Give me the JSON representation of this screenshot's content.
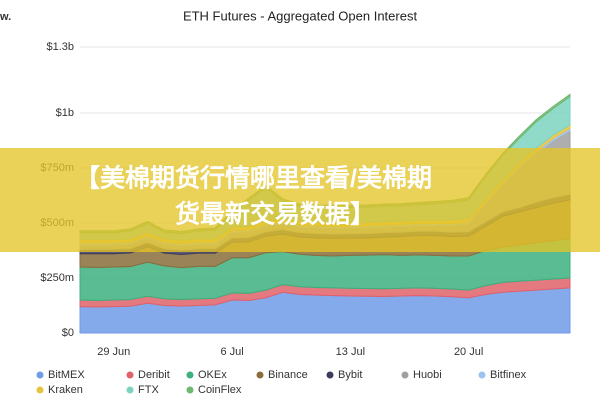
{
  "logo": "w.",
  "banner": [
    "【美棉期货行情哪里查看/美棉期",
    "货最新交易数据】"
  ],
  "chart_data": {
    "type": "stacked-area",
    "title": "ETH Futures - Aggregated Open Interest",
    "categories": [
      null,
      null,
      "29 Jun",
      null,
      null,
      null,
      null,
      null,
      null,
      "6 Jul",
      null,
      null,
      null,
      null,
      null,
      null,
      "13 Jul",
      null,
      null,
      null,
      null,
      null,
      null,
      "20 Jul",
      null,
      null,
      null,
      null,
      null,
      null
    ],
    "ylim": [
      0,
      1300000000
    ],
    "yticks": [
      {
        "value": 0,
        "label": "$0"
      },
      {
        "value": 250000000,
        "label": "$250m"
      },
      {
        "value": 500000000,
        "label": "$500m"
      },
      {
        "value": 750000000,
        "label": "$750m"
      },
      {
        "value": 1000000000,
        "label": "$1b"
      },
      {
        "value": 1300000000,
        "label": "$1.3b"
      }
    ],
    "grid": true,
    "series": [
      {
        "name": "BitMEX",
        "color": "#6f9be8",
        "values": [
          120000000,
          118000000,
          120000000,
          122000000,
          135000000,
          125000000,
          122000000,
          125000000,
          128000000,
          150000000,
          148000000,
          160000000,
          185000000,
          175000000,
          172000000,
          170000000,
          168000000,
          167000000,
          166000000,
          168000000,
          170000000,
          168000000,
          165000000,
          160000000,
          175000000,
          185000000,
          190000000,
          195000000,
          200000000,
          205000000
        ]
      },
      {
        "name": "Deribit",
        "color": "#e0616a",
        "values": [
          30000000,
          30000000,
          30000000,
          30000000,
          32000000,
          30000000,
          30000000,
          30000000,
          30000000,
          32000000,
          32000000,
          35000000,
          35000000,
          35000000,
          35000000,
          35000000,
          35000000,
          35000000,
          35000000,
          35000000,
          35000000,
          35000000,
          35000000,
          35000000,
          40000000,
          45000000,
          45000000,
          45000000,
          45000000,
          45000000
        ]
      },
      {
        "name": "OKEx",
        "color": "#3cb07f",
        "values": [
          150000000,
          150000000,
          150000000,
          150000000,
          155000000,
          150000000,
          145000000,
          148000000,
          145000000,
          160000000,
          162000000,
          170000000,
          150000000,
          148000000,
          145000000,
          145000000,
          150000000,
          152000000,
          155000000,
          150000000,
          150000000,
          150000000,
          150000000,
          155000000,
          160000000,
          160000000,
          165000000,
          170000000,
          175000000,
          180000000
        ]
      },
      {
        "name": "Binance",
        "color": "#8a6d3b",
        "values": [
          60000000,
          62000000,
          60000000,
          62000000,
          70000000,
          58000000,
          60000000,
          60000000,
          60000000,
          70000000,
          72000000,
          75000000,
          80000000,
          78000000,
          80000000,
          80000000,
          78000000,
          78000000,
          80000000,
          85000000,
          88000000,
          90000000,
          88000000,
          90000000,
          110000000,
          140000000,
          150000000,
          160000000,
          170000000,
          175000000
        ]
      },
      {
        "name": "Bybit",
        "color": "#3b3b5c",
        "values": [
          20000000,
          20000000,
          20000000,
          20000000,
          20000000,
          20000000,
          20000000,
          20000000,
          20000000,
          20000000,
          20000000,
          20000000,
          20000000,
          20000000,
          20000000,
          20000000,
          20000000,
          20000000,
          20000000,
          20000000,
          20000000,
          20000000,
          20000000,
          20000000,
          20000000,
          20000000,
          20000000,
          25000000,
          25000000,
          25000000
        ]
      },
      {
        "name": "Huobi",
        "color": "#a0a0a0",
        "values": [
          20000000,
          20000000,
          20000000,
          20000000,
          20000000,
          20000000,
          20000000,
          20000000,
          20000000,
          25000000,
          25000000,
          25000000,
          25000000,
          25000000,
          25000000,
          25000000,
          25000000,
          25000000,
          25000000,
          25000000,
          25000000,
          25000000,
          30000000,
          35000000,
          80000000,
          120000000,
          180000000,
          220000000,
          260000000,
          290000000
        ]
      },
      {
        "name": "Bitfinex",
        "color": "#9cc3ef",
        "values": [
          10000000,
          10000000,
          10000000,
          10000000,
          10000000,
          10000000,
          10000000,
          10000000,
          10000000,
          10000000,
          10000000,
          10000000,
          10000000,
          10000000,
          10000000,
          10000000,
          10000000,
          10000000,
          10000000,
          10000000,
          10000000,
          10000000,
          10000000,
          10000000,
          10000000,
          10000000,
          10000000,
          10000000,
          10000000,
          10000000
        ]
      },
      {
        "name": "Kraken",
        "color": "#e8c33c",
        "values": [
          15000000,
          15000000,
          15000000,
          15000000,
          15000000,
          15000000,
          15000000,
          15000000,
          15000000,
          15000000,
          15000000,
          15000000,
          15000000,
          15000000,
          15000000,
          15000000,
          15000000,
          15000000,
          15000000,
          15000000,
          15000000,
          15000000,
          15000000,
          15000000,
          15000000,
          15000000,
          15000000,
          15000000,
          15000000,
          15000000
        ]
      },
      {
        "name": "FTX",
        "color": "#7dd3c0",
        "values": [
          30000000,
          30000000,
          30000000,
          35000000,
          40000000,
          30000000,
          30000000,
          35000000,
          40000000,
          60000000,
          120000000,
          150000000,
          80000000,
          70000000,
          70000000,
          70000000,
          70000000,
          70000000,
          70000000,
          70000000,
          70000000,
          75000000,
          80000000,
          85000000,
          100000000,
          110000000,
          110000000,
          120000000,
          120000000,
          130000000
        ]
      },
      {
        "name": "CoinFlex",
        "color": "#6fb86f",
        "values": [
          10000000,
          10000000,
          10000000,
          10000000,
          10000000,
          10000000,
          10000000,
          10000000,
          10000000,
          10000000,
          10000000,
          10000000,
          10000000,
          10000000,
          10000000,
          10000000,
          10000000,
          10000000,
          10000000,
          10000000,
          10000000,
          10000000,
          10000000,
          10000000,
          10000000,
          10000000,
          10000000,
          10000000,
          10000000,
          10000000
        ]
      }
    ]
  }
}
